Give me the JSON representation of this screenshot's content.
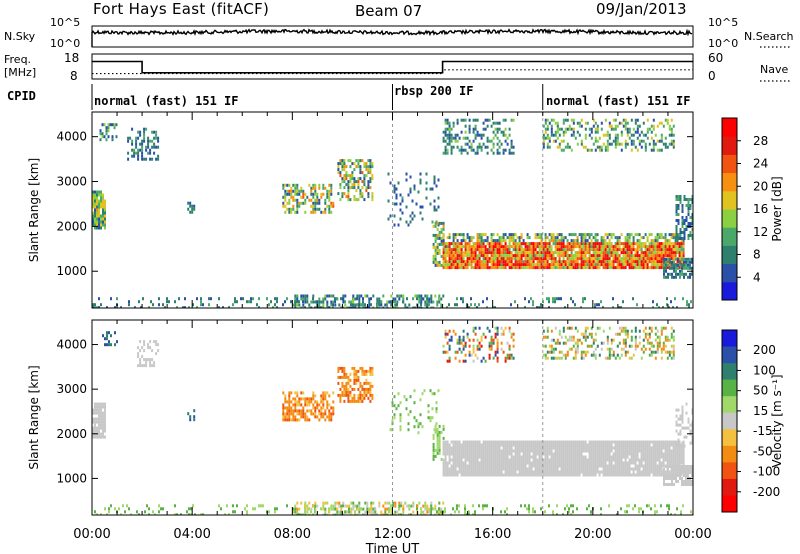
{
  "header": {
    "station": "Fort Hays East (fitACF)",
    "beam": "Beam 07",
    "date": "09/Jan/2013"
  },
  "noise_panel": {
    "left_label": "N.Sky",
    "left_ticks": [
      "10^5",
      "10^0"
    ],
    "right_label": "N.Search",
    "right_ticks": [
      "10^5",
      "10^0"
    ]
  },
  "freq_panel": {
    "left_label_line1": "Freq.",
    "left_label_line2": "[MHz]",
    "left_ticks": [
      "18",
      "8"
    ],
    "right_label": "Nave",
    "right_ticks": [
      "60",
      "0"
    ],
    "freq_steps": [
      {
        "t0": 0.0,
        "t1": 2.0,
        "v": 15
      },
      {
        "t0": 2.0,
        "t1": 14.0,
        "v": 10.5
      },
      {
        "t0": 14.0,
        "t1": 24.0,
        "v": 15
      }
    ],
    "nave_steps": [
      {
        "t0": 0.0,
        "t1": 2.0,
        "v": 13
      },
      {
        "t0": 2.0,
        "t1": 14.0,
        "v": 13
      },
      {
        "t0": 14.0,
        "t1": 24.0,
        "v": 22
      }
    ]
  },
  "cpid": {
    "label": "CPID",
    "modes": [
      {
        "name": "normal (fast) 151 IF",
        "start": "00:00"
      },
      {
        "name": "rbsp 200 IF",
        "start": "12:00"
      },
      {
        "name": "normal (fast) 151 IF",
        "start": "18:00"
      }
    ]
  },
  "colors": {
    "power": [
      "#1a1adc",
      "#2a50a8",
      "#2e7f6e",
      "#4aa86a",
      "#8bd040",
      "#e0c220",
      "#f79010",
      "#f05410",
      "#e01a10",
      "#ff0000"
    ],
    "velocity": [
      "#1a1adc",
      "#2a50a8",
      "#2e7f6e",
      "#59b246",
      "#a0d86a",
      "#c8c8c8",
      "#f5c040",
      "#f48c14",
      "#f05410",
      "#e01a10",
      "#ff0000"
    ],
    "ground": "#c8c8c8"
  },
  "chart_data": [
    {
      "type": "heatmap",
      "title": "Power",
      "ylabel": "Slant Range [km]",
      "xlabel": "",
      "xlim_hours": [
        0,
        24
      ],
      "ylim": [
        180,
        4550
      ],
      "yticks": [
        1000,
        2000,
        3000,
        4000
      ],
      "colorbar": {
        "label": "Power [dB]",
        "ticks": [
          4,
          8,
          12,
          16,
          20,
          24,
          28
        ],
        "range": [
          0,
          32
        ]
      },
      "regions": [
        {
          "t": [
            0.0,
            0.55
          ],
          "r": [
            1950,
            2800
          ],
          "level": [
            4,
            20
          ],
          "density": 0.85
        },
        {
          "t": [
            0.3,
            1.0
          ],
          "r": [
            3900,
            4300
          ],
          "level": [
            4,
            14
          ],
          "density": 0.35
        },
        {
          "t": [
            1.4,
            2.6
          ],
          "r": [
            3500,
            4200
          ],
          "level": [
            4,
            12
          ],
          "density": 0.35
        },
        {
          "t": [
            3.8,
            4.1
          ],
          "r": [
            2300,
            2550
          ],
          "level": [
            4,
            8
          ],
          "density": 0.5
        },
        {
          "t": [
            7.6,
            9.6
          ],
          "r": [
            2300,
            2950
          ],
          "level": [
            4,
            24
          ],
          "density": 0.55
        },
        {
          "t": [
            9.8,
            11.2
          ],
          "r": [
            2600,
            3500
          ],
          "level": [
            4,
            24
          ],
          "density": 0.5
        },
        {
          "t": [
            11.8,
            13.8
          ],
          "r": [
            2000,
            3200
          ],
          "level": [
            4,
            10
          ],
          "density": 0.12
        },
        {
          "t": [
            13.6,
            14.0
          ],
          "r": [
            1100,
            2100
          ],
          "level": [
            4,
            20
          ],
          "density": 0.6
        },
        {
          "t": [
            14.0,
            23.6
          ],
          "r": [
            1100,
            1650
          ],
          "level": [
            12,
            32
          ],
          "density": 0.95
        },
        {
          "t": [
            14.0,
            23.6
          ],
          "r": [
            1650,
            1850
          ],
          "level": [
            4,
            20
          ],
          "density": 0.6
        },
        {
          "t": [
            14.0,
            16.8
          ],
          "r": [
            3600,
            4400
          ],
          "level": [
            4,
            14
          ],
          "density": 0.35
        },
        {
          "t": [
            18.0,
            23.2
          ],
          "r": [
            3700,
            4400
          ],
          "level": [
            4,
            18
          ],
          "density": 0.4
        },
        {
          "t": [
            22.8,
            24.0
          ],
          "r": [
            850,
            1300
          ],
          "level": [
            4,
            12
          ],
          "density": 0.75
        },
        {
          "t": [
            23.3,
            24.0
          ],
          "r": [
            1700,
            2700
          ],
          "level": [
            4,
            12
          ],
          "density": 0.5
        },
        {
          "t": [
            0.0,
            24.0
          ],
          "r": [
            190,
            420
          ],
          "level": [
            4,
            12
          ],
          "density": 0.18
        },
        {
          "t": [
            8.0,
            14.0
          ],
          "r": [
            190,
            480
          ],
          "level": [
            4,
            14
          ],
          "density": 0.45
        }
      ]
    },
    {
      "type": "heatmap",
      "title": "Velocity",
      "ylabel": "Slant Range [km]",
      "xlabel": "Time UT",
      "xlim_hours": [
        0,
        24
      ],
      "xticks": [
        "00:00",
        "04:00",
        "08:00",
        "12:00",
        "16:00",
        "20:00",
        "00:00"
      ],
      "ylim": [
        180,
        4550
      ],
      "yticks": [
        1000,
        2000,
        3000,
        4000
      ],
      "colorbar": {
        "label": "Velocity [m s^-1]",
        "ticks": [
          "200",
          "100",
          "50",
          "15",
          "-15",
          "-50",
          "-100",
          "-200"
        ]
      },
      "regions": [
        {
          "t": [
            0.0,
            0.55
          ],
          "r": [
            1950,
            2700
          ],
          "level": [
            15,
            15
          ],
          "ground": true,
          "density": 0.85
        },
        {
          "t": [
            0.4,
            1.0
          ],
          "r": [
            3900,
            4300
          ],
          "level": [
            100,
            200
          ],
          "density": 0.35
        },
        {
          "t": [
            1.8,
            2.6
          ],
          "r": [
            3500,
            4100
          ],
          "level": [
            15,
            15
          ],
          "ground": true,
          "density": 0.4
        },
        {
          "t": [
            3.8,
            4.1
          ],
          "r": [
            2300,
            2550
          ],
          "level": [
            100,
            200
          ],
          "density": 0.5
        },
        {
          "t": [
            7.6,
            9.6
          ],
          "r": [
            2300,
            2950
          ],
          "level": [
            -120,
            -30
          ],
          "density": 0.6
        },
        {
          "t": [
            9.8,
            11.2
          ],
          "r": [
            2700,
            3500
          ],
          "level": [
            -120,
            -30
          ],
          "density": 0.55
        },
        {
          "t": [
            11.8,
            13.8
          ],
          "r": [
            2000,
            3000
          ],
          "level": [
            20,
            80
          ],
          "density": 0.15
        },
        {
          "t": [
            13.6,
            14.0
          ],
          "r": [
            1400,
            2200
          ],
          "level": [
            20,
            80
          ],
          "density": 0.5
        },
        {
          "t": [
            14.0,
            23.6
          ],
          "r": [
            1100,
            1850
          ],
          "level": [
            15,
            15
          ],
          "ground": true,
          "density": 0.95
        },
        {
          "t": [
            14.0,
            16.8
          ],
          "r": [
            3600,
            4400
          ],
          "level": [
            -200,
            200
          ],
          "density": 0.3
        },
        {
          "t": [
            18.0,
            23.2
          ],
          "r": [
            3700,
            4400
          ],
          "level": [
            -100,
            150
          ],
          "density": 0.35
        },
        {
          "t": [
            22.8,
            24.0
          ],
          "r": [
            850,
            1300
          ],
          "level": [
            15,
            15
          ],
          "ground": true,
          "density": 0.75
        },
        {
          "t": [
            23.3,
            24.0
          ],
          "r": [
            1700,
            2700
          ],
          "level": [
            15,
            15
          ],
          "ground": true,
          "density": 0.5
        },
        {
          "t": [
            0.0,
            24.0
          ],
          "r": [
            190,
            420
          ],
          "level": [
            20,
            80
          ],
          "density": 0.18
        },
        {
          "t": [
            8.0,
            14.0
          ],
          "r": [
            190,
            480
          ],
          "level": [
            -60,
            80
          ],
          "density": 0.45
        }
      ]
    }
  ]
}
